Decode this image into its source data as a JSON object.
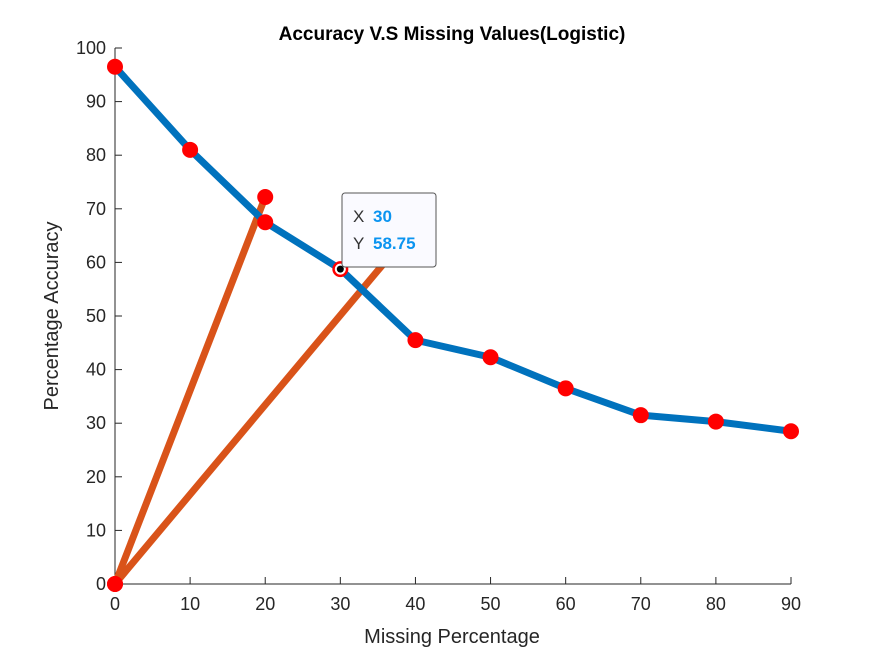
{
  "chart_data": {
    "type": "line",
    "title": "Accuracy V.S Missing Values(Logistic)",
    "xlabel": "Missing Percentage",
    "ylabel": "Percentage Accuracy",
    "xlim": [
      0,
      90
    ],
    "ylim": [
      0,
      100
    ],
    "xticks": [
      0,
      10,
      20,
      30,
      40,
      50,
      60,
      70,
      80,
      90
    ],
    "yticks": [
      0,
      10,
      20,
      30,
      40,
      50,
      60,
      70,
      80,
      90,
      100
    ],
    "grid": false,
    "series": [
      {
        "color": "#0072bd",
        "marker_color": "#ff0000",
        "x": [
          0,
          10,
          20,
          30,
          40,
          50,
          60,
          70,
          80,
          90
        ],
        "y": [
          96.5,
          81,
          67.5,
          58.75,
          45.5,
          42.3,
          36.5,
          31.5,
          30.3,
          28.5
        ]
      },
      {
        "color": "#d95319",
        "marker_color": "#ff0000",
        "x": [
          0,
          20
        ],
        "y": [
          0,
          72.2
        ]
      },
      {
        "color": "#d95319",
        "marker_color": "#ff0000",
        "x": [
          0,
          36.8
        ],
        "y": [
          0,
          61.5
        ]
      }
    ],
    "datatip": {
      "x_key": "X",
      "y_key": "Y",
      "x_value": "30",
      "y_value": "58.75",
      "x": 30,
      "y": 58.75
    }
  }
}
